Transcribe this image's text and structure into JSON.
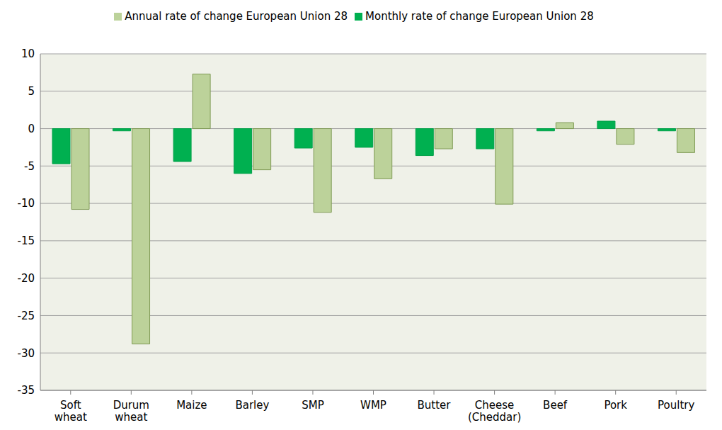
{
  "chart_data": {
    "type": "bar",
    "categories": [
      "Soft wheat",
      "Durum wheat",
      "Maize",
      "Barley",
      "SMP",
      "WMP",
      "Butter",
      "Cheese (Cheddar)",
      "Beef",
      "Pork",
      "Poultry"
    ],
    "series": [
      {
        "name": "Monthly rate of change European Union 28",
        "color": "#00b050",
        "values": [
          -4.7,
          -0.3,
          -4.4,
          -6.0,
          -2.6,
          -2.5,
          -3.6,
          -2.7,
          -0.3,
          1.0,
          -0.3
        ]
      },
      {
        "name": "Annual rate of change European Union 28",
        "color": "#bcd29a",
        "values": [
          -10.8,
          -28.8,
          7.3,
          -5.5,
          -11.2,
          -6.7,
          -2.7,
          -10.1,
          0.8,
          -2.1,
          -3.2
        ]
      }
    ],
    "ylim": [
      -35,
      10
    ],
    "yticks": [
      -35,
      -30,
      -25,
      -20,
      -15,
      -10,
      -5,
      0,
      5,
      10
    ],
    "grid": true,
    "legend": "top"
  }
}
